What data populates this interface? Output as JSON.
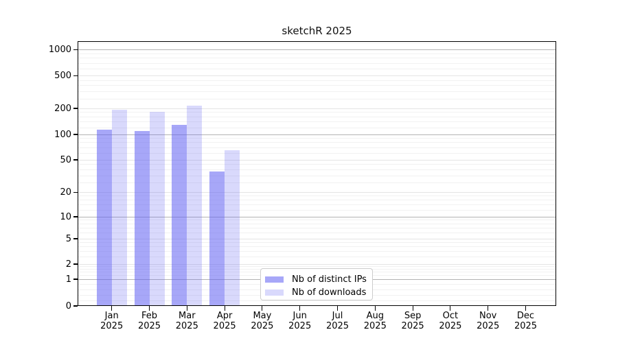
{
  "chart_data": {
    "type": "bar",
    "title": "sketchR 2025",
    "categories": [
      "Jan",
      "Feb",
      "Mar",
      "Apr",
      "May",
      "Jun",
      "Jul",
      "Aug",
      "Sep",
      "Oct",
      "Nov",
      "Dec"
    ],
    "year_label": "2025",
    "series": [
      {
        "name": "Nb of distinct IPs",
        "color": "rgba(95,95,242,0.55)",
        "color_hex_on_white": "#a7a7f8",
        "values": [
          113,
          110,
          130,
          36,
          null,
          null,
          null,
          null,
          null,
          null,
          null,
          null
        ]
      },
      {
        "name": "Nb of downloads",
        "color": "rgba(95,95,242,0.24)",
        "color_hex_on_white": "#d9d9fc",
        "values": [
          194,
          184,
          218,
          65,
          null,
          null,
          null,
          null,
          null,
          null,
          null,
          null
        ]
      }
    ],
    "y_ticks": [
      0,
      1,
      2,
      5,
      10,
      20,
      50,
      100,
      200,
      500,
      1000
    ],
    "y_scale": "symlog",
    "ylim": [
      0,
      1263
    ],
    "xlabel": "",
    "ylabel": "",
    "grid": true,
    "gridline_colors": {
      "decade": "#b3b3b3",
      "major": "#e4e4e4",
      "minor": "#f1f1f1"
    },
    "legend_position": "lower center"
  }
}
